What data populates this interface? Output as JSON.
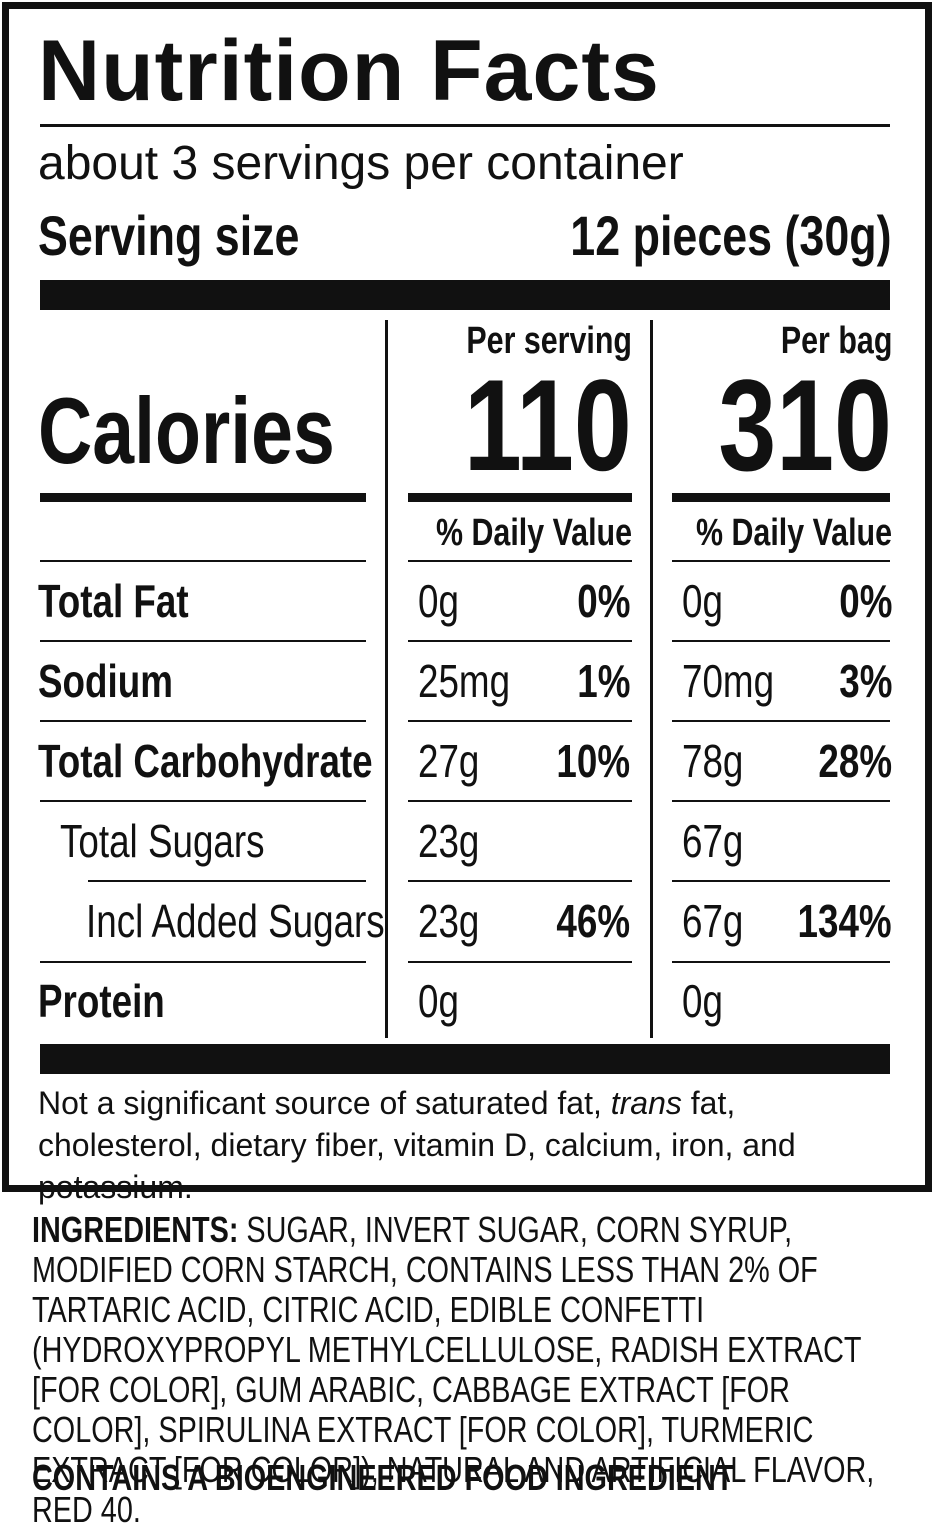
{
  "title": "Nutrition Facts",
  "servings": "about 3 servings per container",
  "serving_size": {
    "label": "Serving size",
    "value": "12 pieces (30g)"
  },
  "calories": {
    "label": "Calories",
    "columns": [
      {
        "header": "Per serving",
        "value": "110"
      },
      {
        "header": "Per bag",
        "value": "310"
      }
    ]
  },
  "daily_value_header": "% Daily Value",
  "nutrients": [
    {
      "name": "Total Fat",
      "serving": {
        "amount": "0g",
        "dv": "0%"
      },
      "bag": {
        "amount": "0g",
        "dv": "0%"
      }
    },
    {
      "name": "Sodium",
      "serving": {
        "amount": "25mg",
        "dv": "1%"
      },
      "bag": {
        "amount": "70mg",
        "dv": "3%"
      }
    },
    {
      "name": "Total Carbohydrate",
      "serving": {
        "amount": "27g",
        "dv": "10%"
      },
      "bag": {
        "amount": "78g",
        "dv": "28%"
      }
    },
    {
      "name": "Total Sugars",
      "serving": {
        "amount": "23g"
      },
      "bag": {
        "amount": "67g"
      }
    },
    {
      "name": "Incl Added Sugars",
      "serving": {
        "amount": "23g",
        "dv": "46%"
      },
      "bag": {
        "amount": "67g",
        "dv": "134%"
      }
    },
    {
      "name": "Protein",
      "serving": {
        "amount": "0g"
      },
      "bag": {
        "amount": "0g"
      }
    }
  ],
  "footnote": {
    "before": "Not a significant source of saturated fat, ",
    "italic": "trans",
    "after": " fat, cholesterol, dietary fiber, vitamin D, calcium, iron, and potassium."
  },
  "ingredients": {
    "label": "INGREDIENTS:",
    "text": " SUGAR, INVERT SUGAR, CORN SYRUP, MODIFIED CORN STARCH, CONTAINS LESS THAN 2% OF TARTARIC ACID, CITRIC ACID, EDIBLE CONFETTI (HYDROXYPROPYL METHYLCELLULOSE, RADISH EXTRACT [FOR COLOR], GUM ARABIC, CABBAGE EXTRACT [FOR COLOR], SPIRULINA EXTRACT [FOR COLOR], TURMERIC EXTRACT [FOR COLOR]), NATURAL AND ARTIFICIAL FLAVOR, RED 40."
  },
  "bioengineered": "CONTAINS A BIOENGINEERED FOOD INGREDIENT"
}
